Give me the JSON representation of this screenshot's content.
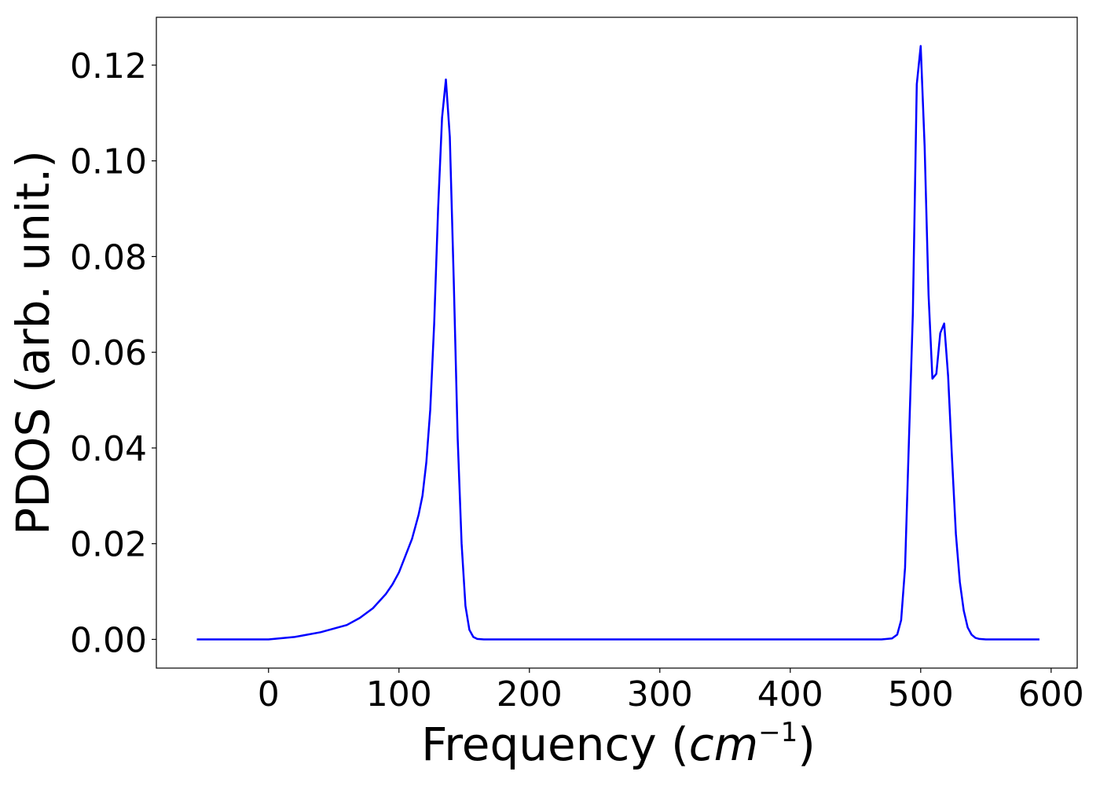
{
  "chart_data": {
    "type": "line",
    "title": "",
    "xlabel_prefix": "Frequency (",
    "xlabel_base": "cm",
    "xlabel_exp": "−1",
    "xlabel_suffix": ")",
    "ylabel": "PDOS (arb. unit.)",
    "xlim": [
      -86,
      620
    ],
    "ylim": [
      -0.006,
      0.13
    ],
    "xticks": [
      0,
      100,
      200,
      300,
      400,
      500,
      600
    ],
    "xtick_labels": [
      "0",
      "100",
      "200",
      "300",
      "400",
      "500",
      "600"
    ],
    "yticks": [
      0.0,
      0.02,
      0.04,
      0.06,
      0.08,
      0.1,
      0.12
    ],
    "ytick_labels": [
      "0.00",
      "0.02",
      "0.04",
      "0.06",
      "0.08",
      "0.10",
      "0.12"
    ],
    "grid": false,
    "series": [
      {
        "color": "#0000ff",
        "x": [
          -55,
          -30,
          0,
          20,
          40,
          60,
          70,
          80,
          90,
          95,
          100,
          105,
          110,
          115,
          118,
          121,
          124,
          127,
          130,
          133,
          136,
          139,
          142,
          145,
          148,
          151,
          154,
          157,
          160,
          165,
          200,
          300,
          400,
          470,
          478,
          482,
          485,
          488,
          491,
          494,
          497,
          500,
          503,
          506,
          509,
          512,
          515,
          518,
          521,
          524,
          527,
          530,
          533,
          536,
          539,
          542,
          545,
          550,
          560,
          591
        ],
        "y": [
          0.0,
          0.0,
          0.0,
          0.0005,
          0.0015,
          0.003,
          0.0045,
          0.0065,
          0.0095,
          0.0115,
          0.014,
          0.0175,
          0.021,
          0.026,
          0.03,
          0.037,
          0.048,
          0.066,
          0.09,
          0.109,
          0.117,
          0.105,
          0.075,
          0.042,
          0.02,
          0.007,
          0.002,
          0.0005,
          0.0001,
          0.0,
          0.0,
          0.0,
          0.0,
          0.0,
          0.0002,
          0.001,
          0.004,
          0.015,
          0.042,
          0.068,
          0.116,
          0.124,
          0.103,
          0.072,
          0.0545,
          0.0555,
          0.064,
          0.066,
          0.055,
          0.038,
          0.022,
          0.012,
          0.006,
          0.0025,
          0.001,
          0.0003,
          0.0001,
          0.0,
          0.0,
          0.0
        ]
      }
    ]
  }
}
